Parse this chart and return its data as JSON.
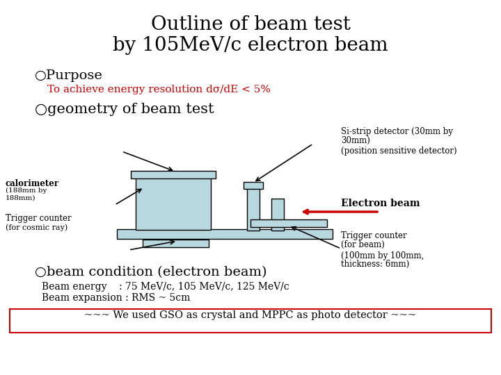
{
  "title_line1": "Outline of beam test",
  "title_line2": "by 105MeV/c electron beam",
  "bg_color": "#ffffff",
  "text_color": "#000000",
  "red_color": "#cc0000",
  "light_blue": "#b8d8e0",
  "purpose_text": "○Purpose",
  "resolution_text": "To achieve energy resolution dσ/dE < 5%",
  "geometry_text": "○geometry of beam test",
  "beam_cond_text": "○beam condition (electron beam)",
  "beam_energy_text": "Beam energy    : 75 MeV/c, 105 MeV/c, 125 MeV/c",
  "beam_expansion_text": "Beam expansion : RMS ~ 5cm",
  "footer_text": "~~~ We used GSO as crystal and MPPC as photo detector ~~~",
  "calorimeter_label1": "calorimeter",
  "calorimeter_label2": "(188mm by",
  "calorimeter_label3": "188mm)",
  "trigger_counter1": "Trigger counter",
  "for_cosmic": "(for cosmic ray)",
  "si_strip1": "Si-strip detector (30mm by",
  "si_strip2": "30mm)",
  "position_sensitive": "(position sensitive detector)",
  "electron_beam_label": "Electron beam",
  "trigger_counter2": "Trigger counter",
  "for_beam": "(for beam)",
  "si_strip_dim": "(100mm by 100mm,",
  "si_strip_thick": "thickness: 6mm)"
}
